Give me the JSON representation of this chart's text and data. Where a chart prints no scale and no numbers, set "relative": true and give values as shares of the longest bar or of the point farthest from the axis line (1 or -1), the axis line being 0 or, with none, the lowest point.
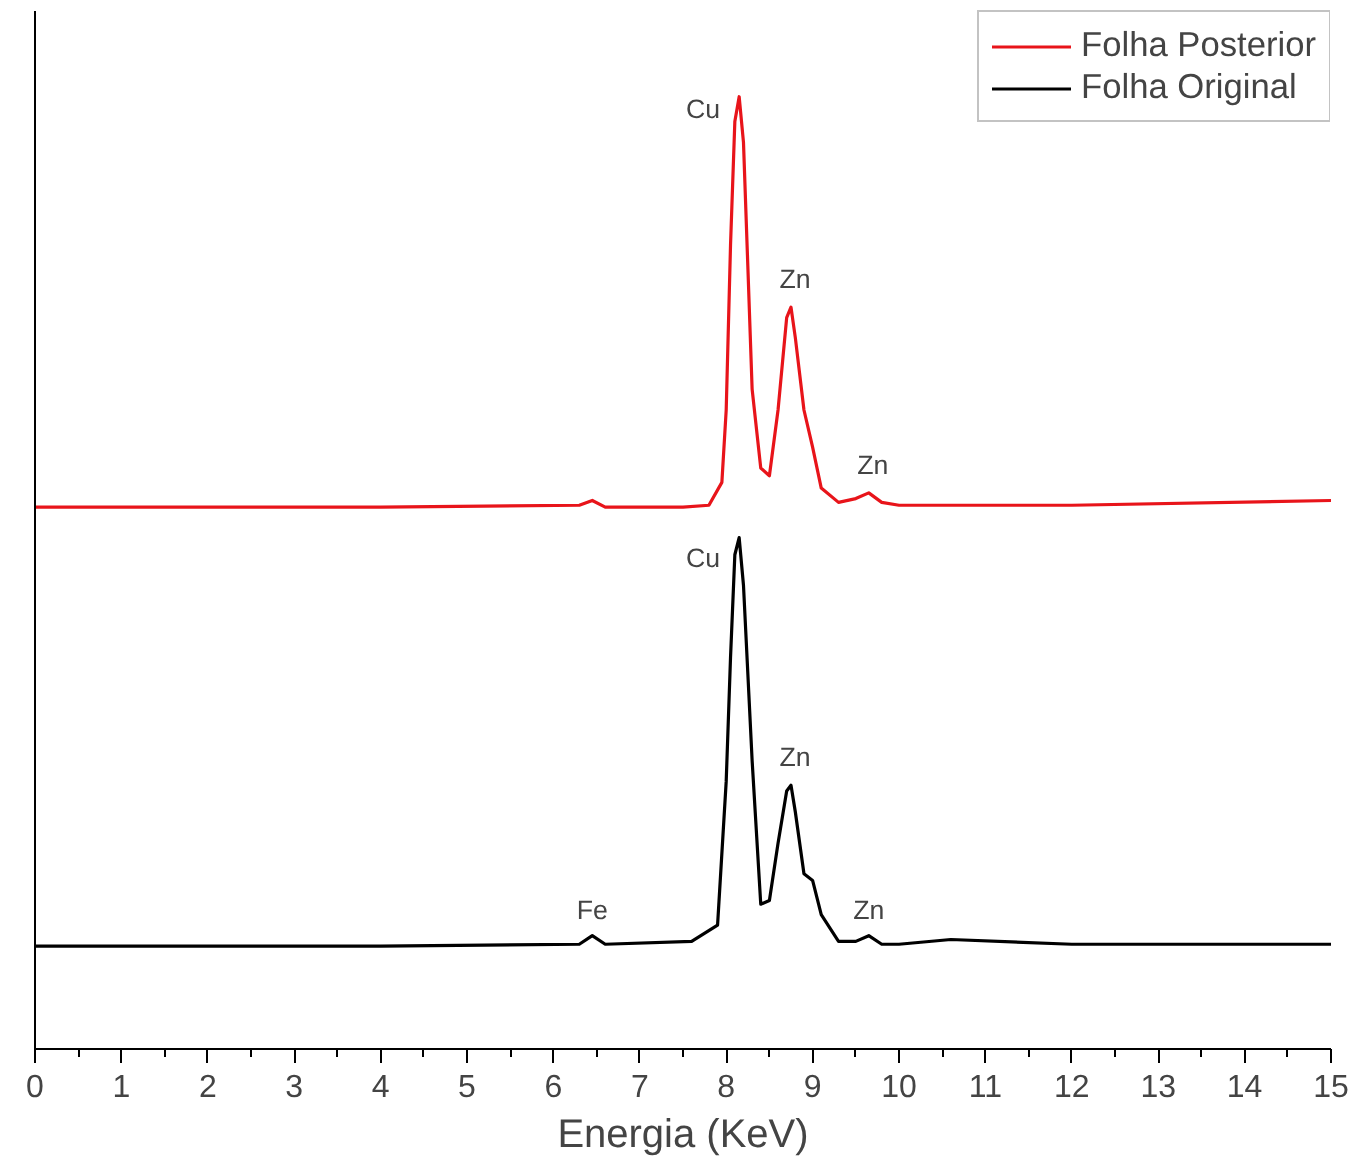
{
  "chart_data": {
    "type": "line",
    "xlabel": "Energia (KeV)",
    "relative": true,
    "xlim": [
      0,
      15
    ],
    "xticks": [
      0,
      1,
      2,
      3,
      4,
      5,
      6,
      7,
      8,
      9,
      10,
      11,
      12,
      13,
      14,
      15
    ],
    "legend": "top right",
    "grid": false,
    "series": [
      {
        "name": "Folha Posterior",
        "color": "#e8141a",
        "x": [
          0,
          2,
          4,
          6.3,
          6.45,
          6.6,
          7.5,
          7.8,
          7.95,
          8.0,
          8.05,
          8.1,
          8.15,
          8.2,
          8.25,
          8.3,
          8.4,
          8.5,
          8.6,
          8.7,
          8.75,
          8.8,
          8.9,
          9.0,
          9.1,
          9.3,
          9.5,
          9.65,
          9.8,
          10,
          12,
          15
        ],
        "values": [
          0.569,
          0.569,
          0.569,
          0.571,
          0.576,
          0.569,
          0.569,
          0.571,
          0.595,
          0.671,
          0.844,
          0.974,
          1.0,
          0.952,
          0.823,
          0.693,
          0.61,
          0.602,
          0.671,
          0.768,
          0.779,
          0.747,
          0.671,
          0.632,
          0.589,
          0.574,
          0.578,
          0.584,
          0.574,
          0.571,
          0.571,
          0.576
        ]
      },
      {
        "name": "Folha Original",
        "color": "#000000",
        "x": [
          0,
          2,
          4,
          6.3,
          6.45,
          6.6,
          7.6,
          7.9,
          8.0,
          8.05,
          8.1,
          8.15,
          8.2,
          8.3,
          8.4,
          8.5,
          8.6,
          8.7,
          8.75,
          8.8,
          8.9,
          9.0,
          9.1,
          9.3,
          9.5,
          9.65,
          9.8,
          10,
          10.6,
          12,
          15
        ],
        "values": [
          0.108,
          0.108,
          0.108,
          0.11,
          0.119,
          0.11,
          0.113,
          0.13,
          0.281,
          0.411,
          0.519,
          0.537,
          0.487,
          0.303,
          0.152,
          0.156,
          0.216,
          0.271,
          0.277,
          0.249,
          0.184,
          0.177,
          0.141,
          0.113,
          0.113,
          0.119,
          0.11,
          0.11,
          0.115,
          0.11,
          0.11
        ]
      }
    ],
    "annotations": [
      {
        "text": "Cu",
        "x": 8.15,
        "y": 1.0
      },
      {
        "text": "Zn",
        "x": 8.75,
        "y": 0.779
      },
      {
        "text": "Zn",
        "x": 9.65,
        "y": 0.584
      },
      {
        "text": "Cu",
        "x": 8.15,
        "y": 0.537
      },
      {
        "text": "Zn",
        "x": 8.75,
        "y": 0.277
      },
      {
        "text": "Fe",
        "x": 6.45,
        "y": 0.119
      },
      {
        "text": "Zn",
        "x": 9.65,
        "y": 0.119
      }
    ]
  }
}
